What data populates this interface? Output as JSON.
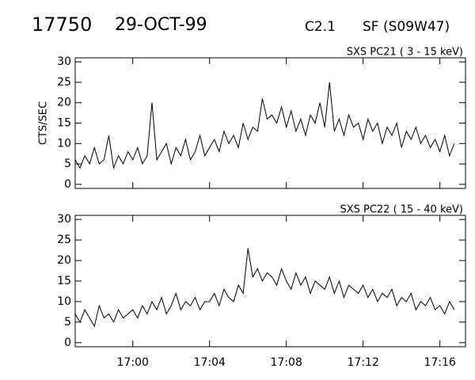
{
  "header": {
    "id": "17750",
    "date": "29-OCT-99",
    "class": "C2.1",
    "flare": "SF (S09W47)"
  },
  "chart_data": [
    {
      "type": "line",
      "title": "SXS PC21  (  3 - 15 keV)",
      "y_label": "CTS/SEC",
      "color": "#000000",
      "x": [
        "16:57:00",
        "16:57:15",
        "16:57:30",
        "16:57:45",
        "16:58:00",
        "16:58:15",
        "16:58:30",
        "16:58:45",
        "16:59:00",
        "16:59:15",
        "16:59:30",
        "16:59:45",
        "17:00:00",
        "17:00:15",
        "17:00:30",
        "17:00:45",
        "17:01:00",
        "17:01:15",
        "17:01:30",
        "17:01:45",
        "17:02:00",
        "17:02:15",
        "17:02:30",
        "17:02:45",
        "17:03:00",
        "17:03:15",
        "17:03:30",
        "17:03:45",
        "17:04:00",
        "17:04:15",
        "17:04:30",
        "17:04:45",
        "17:05:00",
        "17:05:15",
        "17:05:30",
        "17:05:45",
        "17:06:00",
        "17:06:15",
        "17:06:30",
        "17:06:45",
        "17:07:00",
        "17:07:15",
        "17:07:30",
        "17:07:45",
        "17:08:00",
        "17:08:15",
        "17:08:30",
        "17:08:45",
        "17:09:00",
        "17:09:15",
        "17:09:30",
        "17:09:45",
        "17:10:00",
        "17:10:15",
        "17:10:30",
        "17:10:45",
        "17:11:00",
        "17:11:15",
        "17:11:30",
        "17:11:45",
        "17:12:00",
        "17:12:15",
        "17:12:30",
        "17:12:45",
        "17:13:00",
        "17:13:15",
        "17:13:30",
        "17:13:45",
        "17:14:00",
        "17:14:15",
        "17:14:30",
        "17:14:45",
        "17:15:00",
        "17:15:15",
        "17:15:30",
        "17:15:45",
        "17:16:00",
        "17:16:15",
        "17:16:30",
        "17:16:45"
      ],
      "values": [
        6,
        4,
        7,
        5,
        9,
        5,
        6,
        12,
        4,
        7,
        5,
        8,
        6,
        9,
        5,
        7,
        20,
        6,
        8,
        10,
        5,
        9,
        7,
        11,
        6,
        8,
        12,
        7,
        9,
        11,
        8,
        13,
        10,
        12,
        9,
        15,
        11,
        14,
        13,
        21,
        16,
        17,
        15,
        19,
        14,
        18,
        13,
        16,
        12,
        17,
        15,
        20,
        14,
        25,
        13,
        16,
        12,
        17,
        14,
        15,
        11,
        16,
        13,
        15,
        10,
        14,
        12,
        15,
        9,
        13,
        11,
        14,
        10,
        12,
        9,
        11,
        8,
        12,
        7,
        10
      ],
      "xlim": [
        "16:57:00",
        "17:17:20"
      ],
      "xticks": [
        "17:00",
        "17:04",
        "17:08",
        "17:12",
        "17:16"
      ],
      "show_xtick_labels": false,
      "ylim": [
        -1,
        31
      ],
      "yticks": [
        0,
        5,
        10,
        15,
        20,
        25,
        30
      ]
    },
    {
      "type": "line",
      "title": "SXS PC22  ( 15 - 40 keV)",
      "color": "#000000",
      "x": [
        "16:57:00",
        "16:57:15",
        "16:57:30",
        "16:57:45",
        "16:58:00",
        "16:58:15",
        "16:58:30",
        "16:58:45",
        "16:59:00",
        "16:59:15",
        "16:59:30",
        "16:59:45",
        "17:00:00",
        "17:00:15",
        "17:00:30",
        "17:00:45",
        "17:01:00",
        "17:01:15",
        "17:01:30",
        "17:01:45",
        "17:02:00",
        "17:02:15",
        "17:02:30",
        "17:02:45",
        "17:03:00",
        "17:03:15",
        "17:03:30",
        "17:03:45",
        "17:04:00",
        "17:04:15",
        "17:04:30",
        "17:04:45",
        "17:05:00",
        "17:05:15",
        "17:05:30",
        "17:05:45",
        "17:06:00",
        "17:06:15",
        "17:06:30",
        "17:06:45",
        "17:07:00",
        "17:07:15",
        "17:07:30",
        "17:07:45",
        "17:08:00",
        "17:08:15",
        "17:08:30",
        "17:08:45",
        "17:09:00",
        "17:09:15",
        "17:09:30",
        "17:09:45",
        "17:10:00",
        "17:10:15",
        "17:10:30",
        "17:10:45",
        "17:11:00",
        "17:11:15",
        "17:11:30",
        "17:11:45",
        "17:12:00",
        "17:12:15",
        "17:12:30",
        "17:12:45",
        "17:13:00",
        "17:13:15",
        "17:13:30",
        "17:13:45",
        "17:14:00",
        "17:14:15",
        "17:14:30",
        "17:14:45",
        "17:15:00",
        "17:15:15",
        "17:15:30",
        "17:15:45",
        "17:16:00",
        "17:16:15",
        "17:16:30",
        "17:16:45"
      ],
      "values": [
        7,
        5,
        8,
        6,
        4,
        9,
        6,
        7,
        5,
        8,
        6,
        7,
        8,
        6,
        9,
        7,
        10,
        8,
        11,
        7,
        9,
        12,
        8,
        10,
        9,
        11,
        8,
        10,
        10,
        12,
        9,
        13,
        11,
        10,
        14,
        12,
        23,
        16,
        18,
        15,
        17,
        16,
        14,
        18,
        15,
        13,
        17,
        14,
        16,
        12,
        15,
        14,
        13,
        16,
        12,
        15,
        11,
        14,
        13,
        12,
        14,
        11,
        13,
        10,
        12,
        11,
        13,
        9,
        11,
        10,
        12,
        8,
        10,
        9,
        11,
        8,
        9,
        7,
        10,
        8
      ],
      "xlim": [
        "16:57:00",
        "17:17:20"
      ],
      "xticks": [
        "17:00",
        "17:04",
        "17:08",
        "17:12",
        "17:16"
      ],
      "show_xtick_labels": true,
      "ylim": [
        -1,
        31
      ],
      "yticks": [
        0,
        5,
        10,
        15,
        20,
        25,
        30
      ]
    }
  ]
}
